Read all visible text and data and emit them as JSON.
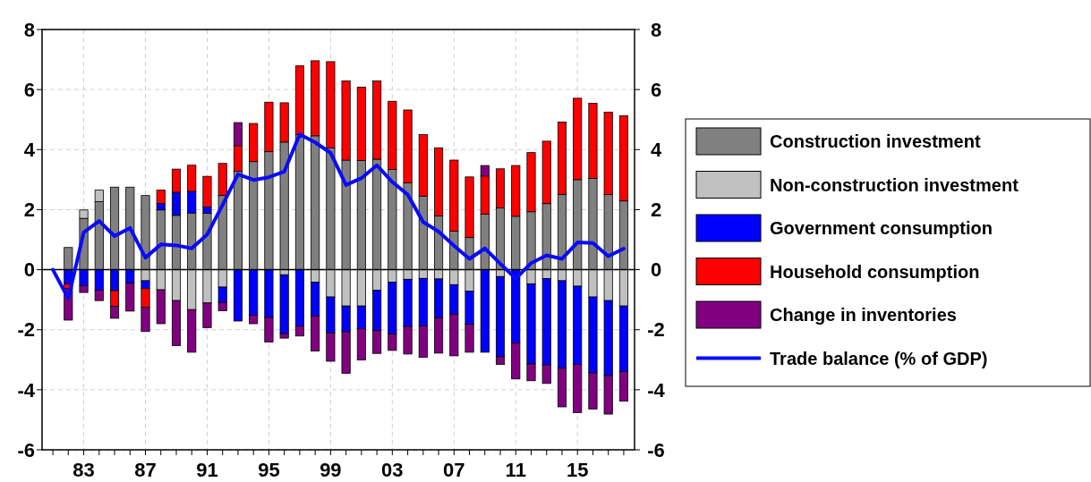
{
  "chart_data": {
    "type": "bar",
    "stacked": true,
    "x": [
      1981,
      1982,
      1983,
      1984,
      1985,
      1986,
      1987,
      1988,
      1989,
      1990,
      1991,
      1992,
      1993,
      1994,
      1995,
      1996,
      1997,
      1998,
      1999,
      2000,
      2001,
      2002,
      2003,
      2004,
      2005,
      2006,
      2007,
      2008,
      2009,
      2010,
      2011,
      2012,
      2013,
      2014,
      2015,
      2016,
      2017,
      2018
    ],
    "xlim": [
      1980.3,
      2018.7
    ],
    "xticks": [
      {
        "value": 1981,
        "label": null
      },
      {
        "value": 1982,
        "label": null
      },
      {
        "value": 1983,
        "label": "83"
      },
      {
        "value": 1984,
        "label": null
      },
      {
        "value": 1985,
        "label": null
      },
      {
        "value": 1986,
        "label": null
      },
      {
        "value": 1987,
        "label": "87"
      },
      {
        "value": 1988,
        "label": null
      },
      {
        "value": 1989,
        "label": null
      },
      {
        "value": 1990,
        "label": null
      },
      {
        "value": 1991,
        "label": "91"
      },
      {
        "value": 1992,
        "label": null
      },
      {
        "value": 1993,
        "label": null
      },
      {
        "value": 1994,
        "label": null
      },
      {
        "value": 1995,
        "label": "95"
      },
      {
        "value": 1996,
        "label": null
      },
      {
        "value": 1997,
        "label": null
      },
      {
        "value": 1998,
        "label": null
      },
      {
        "value": 1999,
        "label": "99"
      },
      {
        "value": 2000,
        "label": null
      },
      {
        "value": 2001,
        "label": null
      },
      {
        "value": 2002,
        "label": null
      },
      {
        "value": 2003,
        "label": "03"
      },
      {
        "value": 2004,
        "label": null
      },
      {
        "value": 2005,
        "label": null
      },
      {
        "value": 2006,
        "label": null
      },
      {
        "value": 2007,
        "label": "07"
      },
      {
        "value": 2008,
        "label": null
      },
      {
        "value": 2009,
        "label": null
      },
      {
        "value": 2010,
        "label": null
      },
      {
        "value": 2011,
        "label": "11"
      },
      {
        "value": 2012,
        "label": null
      },
      {
        "value": 2013,
        "label": null
      },
      {
        "value": 2014,
        "label": null
      },
      {
        "value": 2015,
        "label": "15"
      },
      {
        "value": 2016,
        "label": null
      },
      {
        "value": 2017,
        "label": null
      },
      {
        "value": 2018,
        "label": null
      }
    ],
    "ylim": [
      -6,
      8
    ],
    "yticks": [
      -6,
      -4,
      -2,
      0,
      2,
      4,
      6,
      8
    ],
    "y2lim": [
      -6,
      8
    ],
    "y2ticks": [
      -6,
      -4,
      -2,
      0,
      2,
      4,
      6,
      8
    ],
    "grid": true,
    "legend": "right",
    "ref_lines": [
      {
        "axis": "y",
        "value": 0,
        "color": "#000000"
      }
    ],
    "series": [
      {
        "name": "Construction investment",
        "color": "#808080",
        "values": [
          null,
          0.74,
          1.71,
          2.27,
          2.75,
          2.75,
          2.47,
          1.99,
          1.81,
          1.89,
          1.88,
          2.47,
          3.28,
          3.6,
          3.93,
          4.25,
          4.5,
          4.46,
          4.06,
          3.65,
          3.64,
          3.68,
          3.34,
          2.89,
          2.45,
          1.79,
          1.28,
          1.07,
          1.85,
          2.06,
          1.78,
          1.93,
          2.2,
          2.5,
          3.0,
          3.04,
          2.5,
          2.29
        ]
      },
      {
        "name": "Non-construction investment",
        "color": "#c0c0c0",
        "values": [
          null,
          null,
          0.28,
          0.38,
          null,
          null,
          -0.37,
          -0.67,
          -1.03,
          -1.33,
          -1.11,
          -0.58,
          null,
          null,
          null,
          -0.17,
          null,
          -0.42,
          -0.91,
          -1.21,
          -1.21,
          -0.68,
          -0.42,
          -0.32,
          -0.29,
          -0.31,
          -0.5,
          -0.72,
          null,
          -0.23,
          null,
          -0.47,
          -0.3,
          -0.37,
          -0.55,
          -0.91,
          -1.03,
          -1.21
        ]
      },
      {
        "name": "Government consumption",
        "color": "#0000ff",
        "values": [
          null,
          -0.47,
          -0.53,
          -0.68,
          -0.7,
          -0.45,
          -0.26,
          0.22,
          0.77,
          0.72,
          0.21,
          -0.51,
          -1.71,
          -1.52,
          -1.59,
          -1.96,
          -1.88,
          -1.12,
          -1.19,
          -0.86,
          -0.75,
          -1.35,
          -1.72,
          -1.57,
          -1.58,
          -1.29,
          -0.98,
          -1.1,
          -2.75,
          -2.67,
          -2.44,
          -2.67,
          -2.87,
          -2.91,
          -2.6,
          -2.53,
          -2.5,
          -2.18
        ]
      },
      {
        "name": "Household consumption",
        "color": "#ff0000",
        "values": [
          null,
          -0.15,
          null,
          null,
          -0.52,
          null,
          -0.63,
          0.44,
          0.77,
          0.87,
          1.02,
          1.07,
          0.85,
          1.27,
          1.65,
          1.31,
          2.29,
          2.5,
          2.87,
          2.64,
          2.44,
          2.61,
          2.27,
          2.43,
          2.05,
          2.27,
          2.37,
          2.02,
          1.27,
          1.3,
          1.69,
          1.97,
          2.08,
          2.42,
          2.71,
          2.5,
          2.75,
          2.84
        ]
      },
      {
        "name": "Change in inventories",
        "color": "#800080",
        "values": [
          null,
          -1.06,
          -0.23,
          -0.35,
          -0.4,
          -0.93,
          -0.8,
          -1.13,
          -1.5,
          -1.42,
          -0.82,
          -0.28,
          0.77,
          -0.28,
          -0.82,
          -0.15,
          -0.33,
          -1.17,
          -0.95,
          -1.38,
          -1.05,
          -0.76,
          -0.55,
          -0.92,
          -1.05,
          -1.18,
          -1.39,
          -0.93,
          0.35,
          -0.26,
          -1.2,
          -0.56,
          -0.62,
          -1.29,
          -1.61,
          -1.2,
          -1.28,
          -0.99
        ]
      },
      {
        "name": "Trade balance (% of GDP)",
        "type": "line",
        "color": "#0a0aff",
        "values": [
          0,
          -0.96,
          1.24,
          1.62,
          1.12,
          1.39,
          0.4,
          0.84,
          0.81,
          0.71,
          1.17,
          2.16,
          3.18,
          2.99,
          3.08,
          3.27,
          4.51,
          4.24,
          3.89,
          2.82,
          3.05,
          3.48,
          2.92,
          2.5,
          1.59,
          1.27,
          0.8,
          0.36,
          0.71,
          0.2,
          -0.3,
          0.22,
          0.48,
          0.36,
          0.91,
          0.89,
          0.45,
          0.7
        ]
      }
    ]
  }
}
